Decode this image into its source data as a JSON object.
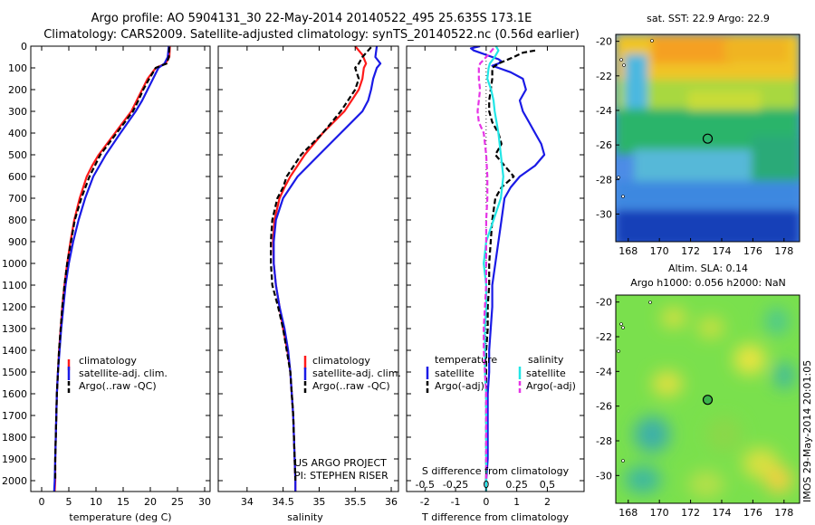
{
  "header": {
    "line1": "Argo profile: AO 5904131_30 22-May-2014 20140522_495 25.635S 173.1E",
    "line2": "Climatology: CARS2009. Satellite-adjusted climatology: synTS_20140522.nc (0.56d earlier)"
  },
  "side_text": "IMOS 29-May-2014 20:01:05",
  "colors": {
    "climatology": "#ff1a1a",
    "satellite": "#1a1ae6",
    "argo": "#000000",
    "sat_salinity": "#22e6e6",
    "argo_salinity": "#e633e6"
  },
  "chart_data": [
    {
      "type": "line",
      "xlabel": "temperature (deg C)",
      "ylim": [
        2050,
        0
      ],
      "xlim": [
        -2,
        31
      ],
      "xticks": [
        "0",
        "5",
        "10",
        "15",
        "20",
        "25",
        "30"
      ],
      "yticks": [
        "0",
        "100",
        "200",
        "300",
        "400",
        "500",
        "600",
        "700",
        "800",
        "900",
        "1000",
        "1100",
        "1200",
        "1300",
        "1400",
        "1500",
        "1600",
        "1700",
        "1800",
        "1900",
        "2000"
      ],
      "legend": [
        "climatology",
        "satellite-adj. clim.",
        "Argo(..raw -QC)"
      ],
      "series": [
        {
          "name": "climatology",
          "color": "climatology",
          "style": "solid",
          "depth": [
            0,
            50,
            80,
            100,
            150,
            200,
            250,
            300,
            400,
            500,
            550,
            600,
            700,
            800,
            900,
            1000,
            1100,
            1200,
            1300,
            1400,
            1500,
            1600,
            1700,
            1800,
            1900,
            2000,
            2050
          ],
          "values": [
            23.6,
            23.5,
            22.8,
            21.0,
            19.5,
            18.5,
            17.5,
            16.5,
            13.5,
            10.5,
            9.3,
            8.3,
            7.0,
            6.0,
            5.3,
            4.7,
            4.2,
            3.8,
            3.5,
            3.2,
            3.0,
            2.8,
            2.7,
            2.6,
            2.5,
            2.5,
            2.4
          ]
        },
        {
          "name": "satellite-adj. clim.",
          "color": "satellite",
          "style": "solid",
          "depth": [
            0,
            50,
            80,
            100,
            150,
            200,
            250,
            300,
            400,
            500,
            600,
            700,
            800,
            900,
            1000,
            1100,
            1200,
            1300,
            1400,
            1500,
            1600,
            1700,
            1800,
            1900,
            2000,
            2050
          ],
          "values": [
            23.4,
            23.2,
            22.6,
            21.5,
            20.5,
            19.5,
            18.5,
            17.3,
            14.5,
            11.8,
            9.5,
            8.0,
            6.8,
            5.8,
            5.0,
            4.4,
            4.0,
            3.6,
            3.3,
            3.0,
            2.8,
            2.7,
            2.6,
            2.5,
            2.4,
            2.3
          ]
        },
        {
          "name": "Argo(..raw -QC)",
          "color": "argo",
          "style": "dash",
          "depth": [
            5,
            50,
            80,
            100,
            150,
            200,
            250,
            300,
            400,
            500,
            600,
            700,
            800,
            900,
            1000,
            1100,
            1200,
            1300,
            1400,
            1500,
            1600,
            1700,
            1800,
            1900,
            2000
          ],
          "values": [
            23.5,
            23.4,
            23.0,
            21.0,
            19.8,
            18.7,
            17.8,
            16.8,
            13.8,
            10.8,
            8.8,
            7.3,
            6.1,
            5.4,
            4.7,
            4.2,
            3.8,
            3.5,
            3.2,
            3.0,
            2.8,
            2.7,
            2.6,
            2.5,
            2.5
          ]
        }
      ]
    },
    {
      "type": "line",
      "xlabel": "salinity",
      "ylim": [
        2050,
        0
      ],
      "xlim": [
        33.6,
        36.1
      ],
      "xticks": [
        "34",
        "34.5",
        "35",
        "35.5",
        "36"
      ],
      "legend": [
        "climatology",
        "satellite-adj. clim.",
        "Argo(..raw -QC)"
      ],
      "annotation": [
        "US ARGO PROJECT",
        "PI: STEPHEN RISER"
      ],
      "series": [
        {
          "name": "climatology",
          "color": "climatology",
          "style": "solid",
          "depth": [
            0,
            40,
            80,
            100,
            150,
            200,
            250,
            300,
            400,
            500,
            550,
            600,
            650,
            700,
            800,
            900,
            1000,
            1100,
            1200,
            1300,
            1400,
            1500,
            1600,
            1700,
            1800,
            1900,
            2000,
            2050
          ],
          "values": [
            35.5,
            35.6,
            35.65,
            35.62,
            35.6,
            35.55,
            35.45,
            35.35,
            35.05,
            34.8,
            34.7,
            34.6,
            34.52,
            34.45,
            34.38,
            34.36,
            34.37,
            34.4,
            34.45,
            34.5,
            34.56,
            34.6,
            34.62,
            34.64,
            34.65,
            34.66,
            34.67,
            34.67
          ]
        },
        {
          "name": "satellite-adj. clim.",
          "color": "satellite",
          "style": "solid",
          "depth": [
            0,
            50,
            80,
            100,
            150,
            200,
            250,
            300,
            400,
            500,
            550,
            600,
            700,
            800,
            900,
            1000,
            1100,
            1200,
            1300,
            1400,
            1500,
            1600,
            1700,
            1800,
            1900,
            2000,
            2050
          ],
          "values": [
            35.8,
            35.78,
            35.85,
            35.8,
            35.75,
            35.72,
            35.68,
            35.6,
            35.3,
            35.0,
            34.85,
            34.7,
            34.5,
            34.4,
            34.37,
            34.37,
            34.4,
            34.45,
            34.52,
            34.57,
            34.6,
            34.62,
            34.64,
            34.65,
            34.66,
            34.67,
            34.67
          ]
        },
        {
          "name": "Argo(..raw -QC)",
          "color": "argo",
          "style": "dash",
          "depth": [
            5,
            50,
            80,
            100,
            150,
            200,
            250,
            300,
            400,
            500,
            550,
            600,
            650,
            700,
            800,
            900,
            1000,
            1100,
            1200,
            1300,
            1400,
            1500,
            1600,
            1700,
            1800,
            1900,
            2000
          ],
          "values": [
            35.72,
            35.6,
            35.55,
            35.5,
            35.55,
            35.5,
            35.4,
            35.3,
            35.05,
            34.75,
            34.65,
            34.55,
            34.5,
            34.42,
            34.35,
            34.33,
            34.33,
            34.35,
            34.43,
            34.5,
            34.55,
            34.6,
            34.62,
            34.64,
            34.65,
            34.66,
            34.67
          ]
        }
      ]
    },
    {
      "type": "line",
      "xlabel": "T difference from climatology",
      "top_axis_label": "S difference from climatology",
      "ylim": [
        2050,
        0
      ],
      "xlim": [
        -2.6,
        3.2
      ],
      "xticks": [
        "-2",
        "-1",
        "0",
        "1",
        "2"
      ],
      "top_xticks": [
        "-0.5",
        "-0.25",
        "0",
        "0.25",
        "0.5"
      ],
      "legend_headers": [
        "temperature",
        "salinity"
      ],
      "legend": [
        "satellite",
        "Argo(-adj)",
        "satellite",
        "Argo(-adj)"
      ],
      "series": [
        {
          "name": "satellite",
          "color": "satellite",
          "style": "solid",
          "depth": [
            0,
            10,
            20,
            30,
            40,
            50,
            60,
            70,
            80,
            90,
            100,
            120,
            150,
            200,
            250,
            300,
            350,
            400,
            450,
            500,
            550,
            600,
            650,
            700,
            800,
            900,
            1000,
            1100,
            1200,
            1300,
            1400,
            1500,
            1600,
            1700,
            1800,
            1900,
            2000,
            2050
          ],
          "values": [
            -0.2,
            -0.5,
            -0.4,
            -0.2,
            0.0,
            0.2,
            0.4,
            0.5,
            0.4,
            0.2,
            0.4,
            0.8,
            1.2,
            1.3,
            1.1,
            1.2,
            1.4,
            1.6,
            1.8,
            1.9,
            1.6,
            1.1,
            0.8,
            0.6,
            0.5,
            0.4,
            0.3,
            0.2,
            0.2,
            0.15,
            0.1,
            0.1,
            0.05,
            0.05,
            0.05,
            0.05,
            0.0,
            0.0
          ]
        },
        {
          "name": "Argo(-adj)",
          "color": "argo",
          "style": "dash",
          "depth": [
            20,
            30,
            50,
            80,
            100,
            150,
            200,
            250,
            300,
            350,
            400,
            450,
            500,
            550,
            600,
            650,
            700,
            800,
            900,
            1000,
            1100,
            1200,
            1300,
            1400,
            1500,
            1600,
            1700,
            1800,
            1900,
            2000
          ],
          "values": [
            1.6,
            1.2,
            0.9,
            0.4,
            0.2,
            0.2,
            0.15,
            0.1,
            0.1,
            0.2,
            0.4,
            0.5,
            0.3,
            0.6,
            0.9,
            0.5,
            0.3,
            0.2,
            0.15,
            0.1,
            0.1,
            0.05,
            0.05,
            0.0,
            0.0,
            0.0,
            0.0,
            0.0,
            0.0,
            0.0
          ]
        },
        {
          "name": "satellite",
          "color": "sat_salinity",
          "style": "solid",
          "depth": [
            0,
            20,
            50,
            80,
            100,
            150,
            200,
            250,
            300,
            400,
            500,
            600,
            700,
            800,
            900,
            1000,
            1100,
            1200,
            1300,
            1400,
            1500,
            1600,
            1700,
            1800,
            1900,
            2000,
            2050
          ],
          "values": [
            0.08,
            0.1,
            0.07,
            0.03,
            0.02,
            0.01,
            0.04,
            0.06,
            0.07,
            0.1,
            0.12,
            0.14,
            0.12,
            0.06,
            0.0,
            -0.02,
            0.0,
            0.0,
            -0.01,
            -0.01,
            -0.01,
            0.0,
            0.0,
            0.0,
            0.0,
            0.0,
            0.0
          ]
        },
        {
          "name": "Argo(-adj)",
          "color": "argo_salinity",
          "style": "dash",
          "depth": [
            10,
            50,
            80,
            100,
            150,
            200,
            250,
            300,
            350,
            400,
            500,
            600,
            700,
            800,
            900,
            1000,
            1100,
            1200,
            1300,
            1400,
            1500,
            1600,
            1700,
            1800,
            1900,
            2000
          ],
          "values": [
            0.06,
            0.0,
            -0.05,
            -0.06,
            -0.06,
            -0.05,
            -0.06,
            -0.07,
            -0.06,
            -0.02,
            0.0,
            0.01,
            0.01,
            0.0,
            0.0,
            0.0,
            0.0,
            -0.01,
            -0.02,
            -0.02,
            -0.01,
            0.0,
            0.0,
            0.0,
            0.0,
            0.0
          ]
        }
      ]
    },
    {
      "type": "heatmap",
      "title": "sat. SST: 22.9  Argo: 22.9",
      "xticks": [
        "168",
        "170",
        "172",
        "174",
        "176",
        "178"
      ],
      "yticks": [
        "-20",
        "-22",
        "-24",
        "-26",
        "-28",
        "-30"
      ],
      "xlim": [
        167.2,
        179.0
      ],
      "ylim": [
        -31.6,
        -19.6
      ],
      "marker": {
        "lon": 173.1,
        "lat": -25.635
      }
    },
    {
      "type": "heatmap",
      "title_line1": "Altim. SLA: 0.14",
      "title_line2": "Argo h1000: 0.056  h2000: NaN",
      "xticks": [
        "168",
        "170",
        "172",
        "174",
        "176",
        "178"
      ],
      "yticks": [
        "-20",
        "-22",
        "-24",
        "-26",
        "-28",
        "-30"
      ],
      "xlim": [
        167.2,
        179.0
      ],
      "ylim": [
        -31.6,
        -19.6
      ],
      "marker": {
        "lon": 173.1,
        "lat": -25.635
      }
    }
  ]
}
